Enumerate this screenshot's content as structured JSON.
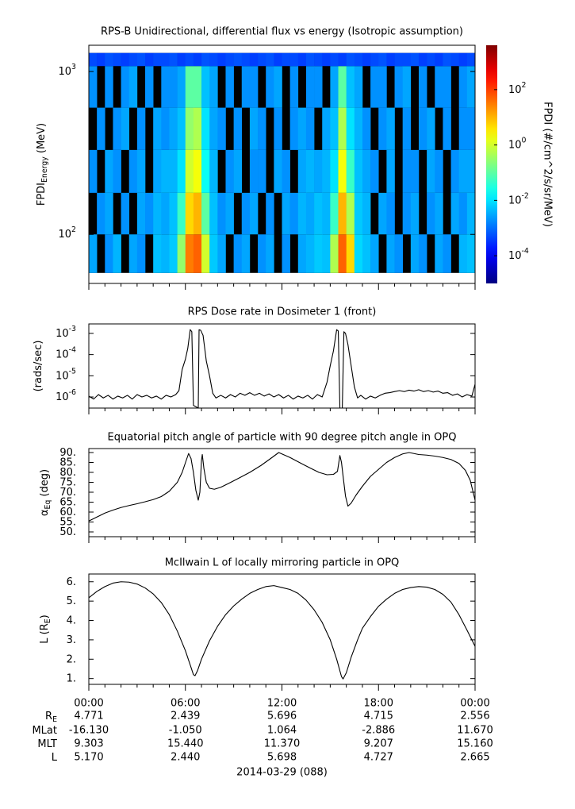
{
  "chart_data": [
    {
      "type": "heatmap",
      "title": "RPS-B  Unidirectional, differential flux vs energy (Isotropic assumption)",
      "ylabel": "FPDI_Energy (MeV)",
      "ylog": true,
      "ylim": [
        50,
        1450
      ],
      "yticks": [
        {
          "value": 100,
          "label": "10^2"
        },
        {
          "value": 1000,
          "label": "10^3"
        }
      ],
      "colormap": "jet",
      "zlog": true,
      "zlim": [
        1e-05,
        4000
      ],
      "zlabel": "FPDI (#/cm^2/s/sr/MeV)",
      "zticks": [
        {
          "value": 0.0001,
          "label": "10^-4"
        },
        {
          "value": 0.01,
          "label": "10^-2"
        },
        {
          "value": 1,
          "label": "10^0"
        },
        {
          "value": 100,
          "label": "10^2"
        }
      ],
      "x_edges": [
        0,
        0.5,
        1,
        1.5,
        2,
        2.5,
        3,
        3.5,
        4,
        4.5,
        5,
        5.5,
        6,
        6.5,
        7,
        7.5,
        8,
        8.5,
        9,
        9.5,
        10,
        10.5,
        11,
        11.5,
        12,
        12.5,
        13,
        13.5,
        14,
        14.5,
        15,
        15.5,
        16,
        16.5,
        17,
        17.5,
        18,
        18.5,
        19,
        19.5,
        20,
        20.5,
        21,
        21.5,
        22,
        22.5,
        23,
        23.5,
        24
      ],
      "y_edges": [
        58,
        100,
        180,
        330,
        600,
        1080,
        1300
      ],
      "values": [
        [
          0.003,
          null,
          0.002,
          0.004,
          null,
          0.003,
          0.002,
          null,
          0.005,
          0.004,
          0.006,
          0.3,
          30,
          50,
          1,
          0.006,
          0.003,
          null,
          0.002,
          0.003,
          null,
          0.002,
          0.003,
          null,
          0.002,
          null,
          0.003,
          0.004,
          0.006,
          0.005,
          0.5,
          50,
          5,
          0.008,
          0.005,
          0.003,
          null,
          0.003,
          0.002,
          null,
          0.003,
          0.002,
          null,
          0.003,
          0.002,
          null,
          0.004,
          0.005
        ],
        [
          null,
          0.002,
          0.003,
          null,
          0.002,
          null,
          0.003,
          0.002,
          0.004,
          0.003,
          0.005,
          0.05,
          5,
          10,
          0.1,
          0.005,
          0.002,
          0.003,
          null,
          0.002,
          0.003,
          null,
          0.002,
          null,
          0.003,
          0.002,
          0.004,
          0.003,
          0.005,
          0.004,
          0.05,
          10,
          0.5,
          0.006,
          0.004,
          null,
          0.003,
          0.002,
          null,
          0.002,
          0.003,
          null,
          0.002,
          0.003,
          null,
          0.003,
          0.002,
          0.004
        ],
        [
          0.002,
          null,
          0.003,
          0.002,
          null,
          0.002,
          0.003,
          null,
          0.003,
          0.004,
          0.004,
          0.01,
          1,
          2,
          0.02,
          0.004,
          null,
          0.002,
          0.003,
          null,
          0.002,
          0.002,
          null,
          0.003,
          0.002,
          null,
          0.003,
          0.004,
          0.003,
          0.004,
          0.01,
          2,
          0.05,
          0.005,
          0.003,
          0.002,
          null,
          0.003,
          null,
          0.002,
          0.002,
          null,
          0.003,
          0.002,
          null,
          0.002,
          0.003,
          0.003
        ],
        [
          null,
          0.002,
          null,
          0.002,
          0.003,
          null,
          0.002,
          null,
          0.003,
          0.002,
          0.003,
          0.005,
          0.3,
          0.5,
          0.01,
          0.003,
          0.002,
          null,
          0.002,
          null,
          0.003,
          0.002,
          null,
          0.002,
          null,
          0.002,
          0.003,
          0.002,
          null,
          0.003,
          0.005,
          0.5,
          0.01,
          0.004,
          0.002,
          null,
          0.002,
          0.003,
          null,
          0.002,
          null,
          0.002,
          0.003,
          null,
          0.002,
          null,
          0.002,
          0.002
        ],
        [
          0.002,
          null,
          0.002,
          null,
          0.002,
          0.003,
          null,
          0.002,
          null,
          0.002,
          0.002,
          0.003,
          0.1,
          0.1,
          0.005,
          0.003,
          null,
          0.002,
          null,
          0.002,
          0.002,
          null,
          0.002,
          0.003,
          null,
          0.002,
          null,
          0.002,
          0.002,
          null,
          0.003,
          0.1,
          0.005,
          0.003,
          null,
          0.002,
          0.002,
          null,
          0.002,
          0.003,
          null,
          0.002,
          null,
          0.002,
          0.002,
          null,
          0.002,
          0.003
        ],
        [
          0.0005,
          0.0004,
          0.0006,
          0.0005,
          0.0004,
          0.0005,
          0.0006,
          0.0004,
          0.0005,
          0.0005,
          0.0006,
          0.0004,
          0.0005,
          0.0004,
          0.0006,
          0.0005,
          0.0004,
          0.0005,
          0.0006,
          0.0005,
          0.0004,
          0.0005,
          0.0006,
          0.0004,
          0.0005,
          0.0005,
          0.0004,
          0.0006,
          0.0005,
          0.0004,
          0.0005,
          0.0004,
          0.0006,
          0.0005,
          0.0004,
          0.0005,
          0.0006,
          0.0004,
          0.0005,
          0.0005,
          0.0006,
          0.0004,
          0.0005,
          0.0004,
          0.0006,
          0.0005,
          0.0004,
          0.0005
        ]
      ]
    },
    {
      "type": "line",
      "title": "RPS  Dose rate in Dosimeter 1 (front)",
      "ylabel": "(rads/sec)",
      "ylog": true,
      "ylim": [
        3e-07,
        0.0028
      ],
      "color": "#000000",
      "yticks": [
        {
          "value": 1e-06,
          "label": "10^-6"
        },
        {
          "value": 1e-05,
          "label": "10^-5"
        },
        {
          "value": 0.0001,
          "label": "10^-4"
        },
        {
          "value": 0.001,
          "label": "10^-3"
        }
      ],
      "x": [
        0,
        0.3,
        0.6,
        0.9,
        1.2,
        1.5,
        1.8,
        2.1,
        2.4,
        2.7,
        3.0,
        3.3,
        3.6,
        3.9,
        4.2,
        4.5,
        4.8,
        5.1,
        5.4,
        5.6,
        5.8,
        6.0,
        6.15,
        6.3,
        6.4,
        6.5,
        6.8,
        6.85,
        6.95,
        7.1,
        7.3,
        7.5,
        7.7,
        7.9,
        8.2,
        8.5,
        8.8,
        9.1,
        9.4,
        9.7,
        10,
        10.3,
        10.6,
        10.9,
        11.2,
        11.5,
        11.8,
        12.1,
        12.4,
        12.7,
        13,
        13.3,
        13.6,
        13.9,
        14.2,
        14.5,
        14.8,
        15.0,
        15.2,
        15.4,
        15.5,
        15.6,
        15.75,
        15.85,
        15.95,
        16.1,
        16.3,
        16.5,
        16.7,
        16.9,
        17.2,
        17.5,
        17.8,
        18.1,
        18.4,
        18.7,
        19,
        19.3,
        19.6,
        19.9,
        20.2,
        20.5,
        20.8,
        21.1,
        21.4,
        21.7,
        22,
        22.3,
        22.6,
        22.9,
        23.2,
        23.5,
        23.8,
        24
      ],
      "values": [
        1.1e-06,
        8e-07,
        1.3e-06,
        9e-07,
        1.2e-06,
        8e-07,
        1.1e-06,
        9e-07,
        1.2e-06,
        8e-07,
        1.3e-06,
        1e-06,
        1.2e-06,
        9e-07,
        1.1e-06,
        8e-07,
        1.2e-06,
        1e-06,
        1.3e-06,
        2e-06,
        2e-05,
        6e-05,
        0.0002,
        0.0015,
        0.0012,
        4e-07,
        3e-07,
        0.0015,
        0.0014,
        0.0008,
        5e-05,
        1e-05,
        1.5e-06,
        9e-07,
        1.2e-06,
        9e-07,
        1.3e-06,
        1e-06,
        1.5e-06,
        1.2e-06,
        1.6e-06,
        1.2e-06,
        1.5e-06,
        1.1e-06,
        1.4e-06,
        1e-06,
        1.3e-06,
        9e-07,
        1.2e-06,
        8e-07,
        1.1e-06,
        9e-07,
        1.2e-06,
        8e-07,
        1.3e-06,
        1e-06,
        5e-06,
        3e-05,
        0.00015,
        0.0015,
        0.0013,
        3e-07,
        3e-07,
        0.0012,
        0.001,
        0.0003,
        3e-05,
        3e-06,
        9e-07,
        1.2e-06,
        8e-07,
        1.1e-06,
        9e-07,
        1.2e-06,
        1.5e-06,
        1.6e-06,
        1.8e-06,
        2e-06,
        1.8e-06,
        2.1e-06,
        1.9e-06,
        2.2e-06,
        1.8e-06,
        2e-06,
        1.7e-06,
        1.9e-06,
        1.5e-06,
        1.6e-06,
        1.2e-06,
        1.4e-06,
        1e-06,
        1.3e-06,
        1.1e-06,
        4e-06
      ]
    },
    {
      "type": "line",
      "title": "Equatorial pitch angle of particle with 90 degree pitch angle in OPQ",
      "ylabel": "α_Eq (deg)",
      "ylim": [
        47.6,
        92
      ],
      "color": "#000000",
      "yticks": [
        {
          "value": 50,
          "label": "50."
        },
        {
          "value": 55,
          "label": "55."
        },
        {
          "value": 60,
          "label": "60."
        },
        {
          "value": 65,
          "label": "65."
        },
        {
          "value": 70,
          "label": "70."
        },
        {
          "value": 75,
          "label": "75."
        },
        {
          "value": 80,
          "label": "80."
        },
        {
          "value": 85,
          "label": "85."
        },
        {
          "value": 90,
          "label": "90."
        }
      ],
      "x": [
        0,
        0.5,
        1,
        1.5,
        2,
        2.5,
        3,
        3.5,
        4,
        4.5,
        5,
        5.5,
        5.8,
        6.05,
        6.2,
        6.35,
        6.5,
        6.65,
        6.8,
        6.9,
        7.0,
        7.05,
        7.15,
        7.3,
        7.5,
        7.8,
        8.2,
        8.7,
        9.3,
        10,
        10.7,
        11.3,
        11.8,
        12.5,
        13.2,
        13.8,
        14.3,
        14.8,
        15.2,
        15.45,
        15.6,
        15.7,
        15.8,
        15.95,
        16.1,
        16.3,
        16.6,
        17,
        17.5,
        18,
        18.5,
        19,
        19.5,
        19.9,
        20.5,
        21,
        21.5,
        22,
        22.5,
        23,
        23.4,
        23.7,
        24
      ],
      "values": [
        55.5,
        57.5,
        59.5,
        61,
        62.3,
        63.3,
        64.2,
        65.2,
        66.3,
        67.8,
        70.5,
        75,
        80,
        86,
        89.5,
        87,
        80,
        71,
        66,
        70,
        86,
        89,
        82,
        75,
        72,
        71.5,
        72.5,
        74.5,
        77,
        80,
        83.5,
        87,
        90,
        87.5,
        84.5,
        82,
        80,
        78.8,
        79,
        80.5,
        88.5,
        85,
        78,
        68,
        63,
        64.5,
        68.5,
        73,
        78,
        81.5,
        85,
        87.5,
        89.3,
        90,
        89,
        88.7,
        88.2,
        87.5,
        86.5,
        84.5,
        81,
        76,
        66
      ]
    },
    {
      "type": "line",
      "title": "McIlwain L of locally mirroring particle in OPQ",
      "ylabel": "L (R_E)",
      "ylim": [
        0.7,
        6.4
      ],
      "color": "#000000",
      "yticks": [
        {
          "value": 1,
          "label": "1."
        },
        {
          "value": 2,
          "label": "2."
        },
        {
          "value": 3,
          "label": "3."
        },
        {
          "value": 4,
          "label": "4."
        },
        {
          "value": 5,
          "label": "5."
        },
        {
          "value": 6,
          "label": "6."
        }
      ],
      "x": [
        0,
        0.5,
        1,
        1.5,
        2,
        2.5,
        3,
        3.5,
        4,
        4.5,
        5,
        5.5,
        6,
        6.3,
        6.5,
        6.6,
        6.75,
        7,
        7.5,
        8,
        8.5,
        9,
        9.5,
        10,
        10.5,
        11,
        11.5,
        12,
        12.5,
        13,
        13.5,
        14,
        14.5,
        15,
        15.4,
        15.7,
        15.8,
        16,
        16.3,
        16.7,
        17,
        17.5,
        18,
        18.5,
        19,
        19.5,
        20,
        20.5,
        21,
        21.5,
        22,
        22.5,
        23,
        23.5,
        24
      ],
      "values": [
        5.17,
        5.5,
        5.75,
        5.93,
        6.0,
        5.98,
        5.88,
        5.68,
        5.37,
        4.93,
        4.3,
        3.45,
        2.44,
        1.7,
        1.2,
        1.15,
        1.4,
        2.0,
        2.95,
        3.7,
        4.3,
        4.75,
        5.1,
        5.4,
        5.6,
        5.75,
        5.8,
        5.7,
        5.6,
        5.4,
        5.05,
        4.55,
        3.9,
        3.0,
        2.0,
        1.1,
        0.98,
        1.3,
        2.1,
        3.0,
        3.6,
        4.2,
        4.73,
        5.1,
        5.4,
        5.6,
        5.7,
        5.75,
        5.72,
        5.6,
        5.35,
        4.95,
        4.3,
        3.5,
        2.665
      ]
    }
  ],
  "time_axis": {
    "xlim": [
      0,
      24
    ],
    "xticks": [
      {
        "value": 0,
        "label": "00:00"
      },
      {
        "value": 6,
        "label": "06:00"
      },
      {
        "value": 12,
        "label": "12:00"
      },
      {
        "value": 18,
        "label": "18:00"
      },
      {
        "value": 24,
        "label": "00:00"
      }
    ],
    "xminorticks": [
      1,
      2,
      3,
      4,
      5,
      7,
      8,
      9,
      10,
      11,
      13,
      14,
      15,
      16,
      17,
      19,
      20,
      21,
      22,
      23
    ],
    "date": "2014-03-29 (088)"
  },
  "ephemeris": {
    "rows": [
      {
        "label": "R_E",
        "values": [
          "4.771",
          "2.439",
          "5.696",
          "4.715",
          "2.556"
        ]
      },
      {
        "label": "MLat",
        "values": [
          "-16.130",
          "-1.050",
          "1.064",
          "-2.886",
          "11.670"
        ]
      },
      {
        "label": "MLT",
        "values": [
          "9.303",
          "15.440",
          "11.370",
          "9.207",
          "15.160"
        ]
      },
      {
        "label": "L",
        "values": [
          "5.170",
          "2.440",
          "5.698",
          "4.727",
          "2.665"
        ]
      }
    ]
  }
}
